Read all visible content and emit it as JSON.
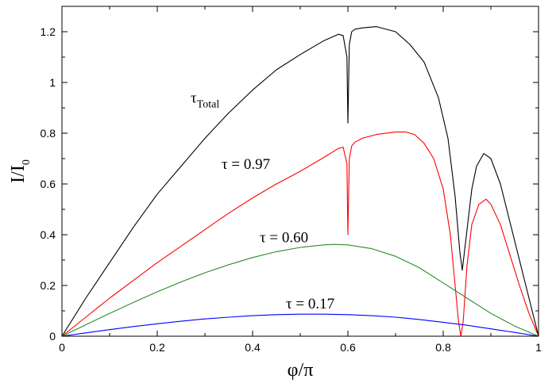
{
  "chart_data": {
    "type": "line",
    "xlabel": "φ/π",
    "ylabel": "I/I0",
    "ylabel_main": "I/I",
    "ylabel_sub": "0",
    "xlim": [
      0,
      1
    ],
    "ylim": [
      0,
      1.3
    ],
    "grid": false,
    "x_ticks": [
      0,
      0.2,
      0.4,
      0.6,
      0.8,
      1
    ],
    "x_tick_labels": [
      "0",
      "0.2",
      "0.4",
      "0.6",
      "0.8",
      "1"
    ],
    "y_ticks": [
      0,
      0.2,
      0.4,
      0.6,
      0.8,
      1,
      1.2
    ],
    "y_tick_labels": [
      "0",
      "0.2",
      "0.4",
      "0.6",
      "0.8",
      "1",
      "1.2"
    ],
    "series": [
      {
        "color": "#000000",
        "x": [
          0,
          0.05,
          0.1,
          0.15,
          0.2,
          0.25,
          0.3,
          0.35,
          0.4,
          0.45,
          0.5,
          0.55,
          0.58,
          0.59,
          0.598,
          0.6,
          0.603,
          0.608,
          0.615,
          0.63,
          0.66,
          0.7,
          0.73,
          0.76,
          0.79,
          0.81,
          0.825,
          0.835,
          0.84,
          0.85,
          0.86,
          0.87,
          0.885,
          0.9,
          0.92,
          0.94,
          0.96,
          0.98,
          1.0
        ],
        "y": [
          0,
          0.15,
          0.29,
          0.43,
          0.56,
          0.67,
          0.78,
          0.88,
          0.97,
          1.05,
          1.11,
          1.165,
          1.19,
          1.185,
          1.1,
          0.84,
          1.15,
          1.2,
          1.21,
          1.215,
          1.22,
          1.2,
          1.15,
          1.08,
          0.94,
          0.78,
          0.55,
          0.33,
          0.26,
          0.42,
          0.58,
          0.67,
          0.72,
          0.7,
          0.6,
          0.45,
          0.3,
          0.15,
          0
        ]
      },
      {
        "color": "#ff0000",
        "x": [
          0,
          0.05,
          0.1,
          0.15,
          0.2,
          0.25,
          0.3,
          0.35,
          0.4,
          0.45,
          0.5,
          0.55,
          0.58,
          0.59,
          0.598,
          0.6,
          0.603,
          0.608,
          0.615,
          0.63,
          0.66,
          0.7,
          0.72,
          0.74,
          0.76,
          0.78,
          0.8,
          0.815,
          0.825,
          0.832,
          0.837,
          0.842,
          0.85,
          0.86,
          0.875,
          0.89,
          0.9,
          0.92,
          0.94,
          0.96,
          0.98,
          1.0
        ],
        "y": [
          0,
          0.075,
          0.15,
          0.22,
          0.29,
          0.355,
          0.42,
          0.485,
          0.545,
          0.6,
          0.65,
          0.705,
          0.74,
          0.745,
          0.68,
          0.4,
          0.7,
          0.75,
          0.765,
          0.78,
          0.795,
          0.805,
          0.805,
          0.795,
          0.76,
          0.7,
          0.58,
          0.4,
          0.2,
          0.06,
          0.0,
          0.06,
          0.28,
          0.44,
          0.52,
          0.54,
          0.52,
          0.44,
          0.32,
          0.2,
          0.09,
          0
        ]
      },
      {
        "color": "#2a8c2a",
        "x": [
          0,
          0.05,
          0.1,
          0.15,
          0.2,
          0.25,
          0.3,
          0.35,
          0.4,
          0.45,
          0.5,
          0.55,
          0.57,
          0.6,
          0.65,
          0.7,
          0.75,
          0.8,
          0.85,
          0.9,
          0.95,
          1.0
        ],
        "y": [
          0,
          0.045,
          0.09,
          0.133,
          0.175,
          0.214,
          0.25,
          0.282,
          0.31,
          0.333,
          0.35,
          0.36,
          0.362,
          0.36,
          0.345,
          0.315,
          0.27,
          0.21,
          0.15,
          0.09,
          0.04,
          0
        ]
      },
      {
        "color": "#0000ff",
        "x": [
          0,
          0.05,
          0.1,
          0.15,
          0.2,
          0.25,
          0.3,
          0.35,
          0.4,
          0.45,
          0.5,
          0.55,
          0.6,
          0.65,
          0.7,
          0.75,
          0.8,
          0.85,
          0.9,
          0.95,
          1.0
        ],
        "y": [
          0,
          0.013,
          0.026,
          0.038,
          0.049,
          0.059,
          0.068,
          0.075,
          0.081,
          0.085,
          0.087,
          0.087,
          0.085,
          0.081,
          0.075,
          0.066,
          0.055,
          0.043,
          0.029,
          0.015,
          0
        ]
      }
    ],
    "annotations": [
      {
        "base": "τ",
        "sub": "Total",
        "x": 0.27,
        "y": 0.92
      },
      {
        "text": "τ = 0.97",
        "x": 0.335,
        "y": 0.66
      },
      {
        "text": "τ = 0.60",
        "x": 0.415,
        "y": 0.37
      },
      {
        "text": "τ = 0.17",
        "x": 0.47,
        "y": 0.11
      }
    ]
  }
}
